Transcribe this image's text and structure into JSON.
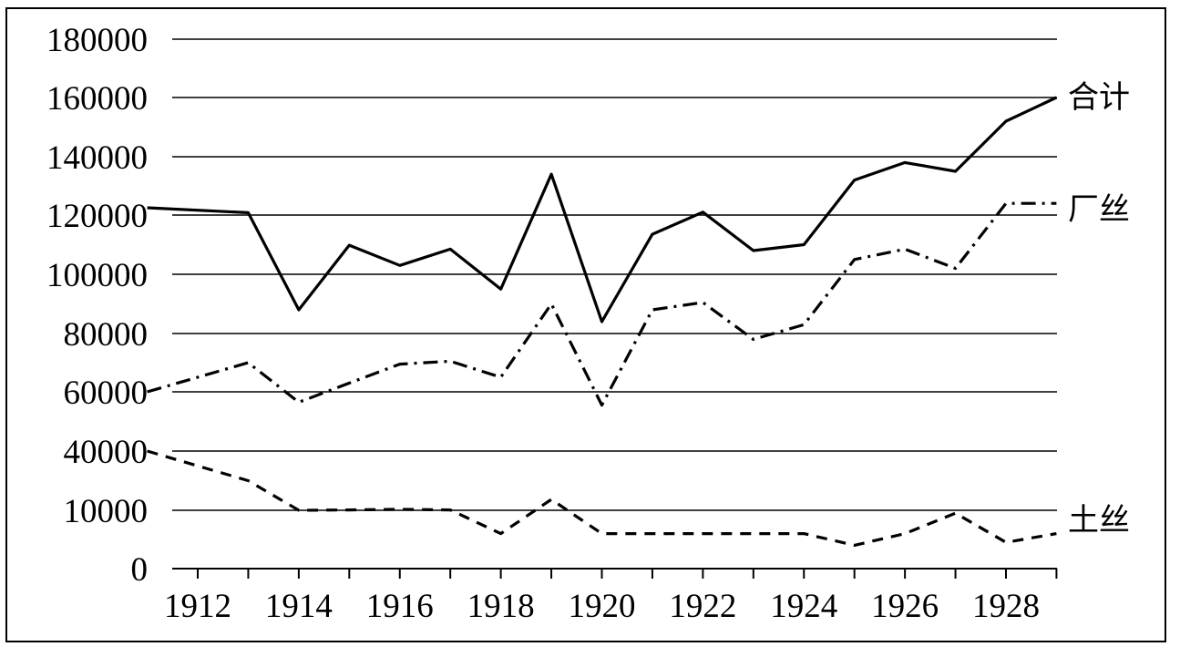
{
  "chart_data": {
    "type": "line",
    "x": [
      1911,
      1913,
      1914,
      1915,
      1916,
      1917,
      1918,
      1919,
      1920,
      1921,
      1922,
      1923,
      1924,
      1925,
      1926,
      1927,
      1928,
      1929
    ],
    "y_tick_labels": [
      "0",
      "10000",
      "40000",
      "60000",
      "80000",
      "100000",
      "120000",
      "140000",
      "160000",
      "180000"
    ],
    "x_tick_labels": [
      "1912",
      "1914",
      "1916",
      "1918",
      "1920",
      "1922",
      "1924",
      "1926",
      "1928"
    ],
    "x_ticks": [
      1912,
      1914,
      1916,
      1918,
      1920,
      1922,
      1924,
      1926,
      1928
    ],
    "xlim": [
      1911,
      1929
    ],
    "grid": true,
    "series": [
      {
        "name": "合计",
        "style": "solid",
        "values": [
          122500,
          120800,
          88000,
          109800,
          103000,
          108500,
          95000,
          134000,
          84000,
          113500,
          121000,
          108000,
          110000,
          132000,
          138000,
          135000,
          152000,
          160000
        ]
      },
      {
        "name": "厂丝",
        "style": "dashdot",
        "values": [
          60000,
          70000,
          56500,
          63000,
          69500,
          70500,
          65000,
          90000,
          55500,
          88000,
          90500,
          78000,
          83000,
          105000,
          108500,
          102000,
          124000,
          124000
        ]
      },
      {
        "name": "土丝",
        "style": "dashed",
        "values": [
          40000,
          25000,
          10000,
          10200,
          10500,
          10200,
          6000,
          15500,
          6000,
          6000,
          6000,
          6000,
          6000,
          4000,
          6000,
          9500,
          4500,
          6000
        ]
      }
    ]
  }
}
